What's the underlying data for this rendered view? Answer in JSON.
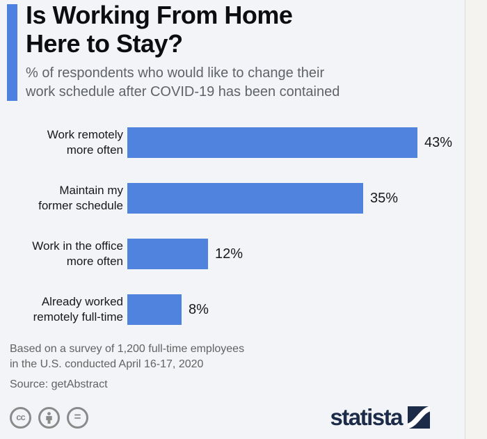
{
  "header": {
    "title_line1": "Is Working From Home",
    "title_line2": "Here to Stay?",
    "subtitle_line1": "% of respondents who would like to change their",
    "subtitle_line2": "work schedule after COVID-19 has been contained"
  },
  "chart_data": {
    "type": "bar",
    "orientation": "horizontal",
    "title": "Is Working From Home Here to Stay?",
    "subtitle": "% of respondents who would like to change their work schedule after COVID-19 has been contained",
    "categories": [
      "Work remotely more often",
      "Maintain my former schedule",
      "Work in the office more often",
      "Already worked remotely full-time"
    ],
    "values": [
      43,
      35,
      12,
      8
    ],
    "unit": "%",
    "xlim": [
      0,
      43
    ],
    "grid": false,
    "legend": false,
    "bar_color": "#5083dd",
    "rows": [
      {
        "label_line1": "Work remotely",
        "label_line2": "more often",
        "value": 43,
        "value_label": "43%"
      },
      {
        "label_line1": "Maintain my",
        "label_line2": "former schedule",
        "value": 35,
        "value_label": "35%"
      },
      {
        "label_line1": "Work in the office",
        "label_line2": "more often",
        "value": 12,
        "value_label": "12%"
      },
      {
        "label_line1": "Already worked",
        "label_line2": "remotely full-time",
        "value": 8,
        "value_label": "8%"
      }
    ]
  },
  "footer": {
    "note_line1": "Based on a survey of 1,200 full-time employees",
    "note_line2": "in the U.S. conducted April 16-17, 2020",
    "source": "Source: getAbstract"
  },
  "branding": {
    "logo_text": "statista",
    "license_icons": {
      "cc": "cc",
      "nd": "="
    },
    "accent_color": "#4c81e2",
    "logo_color": "#1c2b47"
  }
}
